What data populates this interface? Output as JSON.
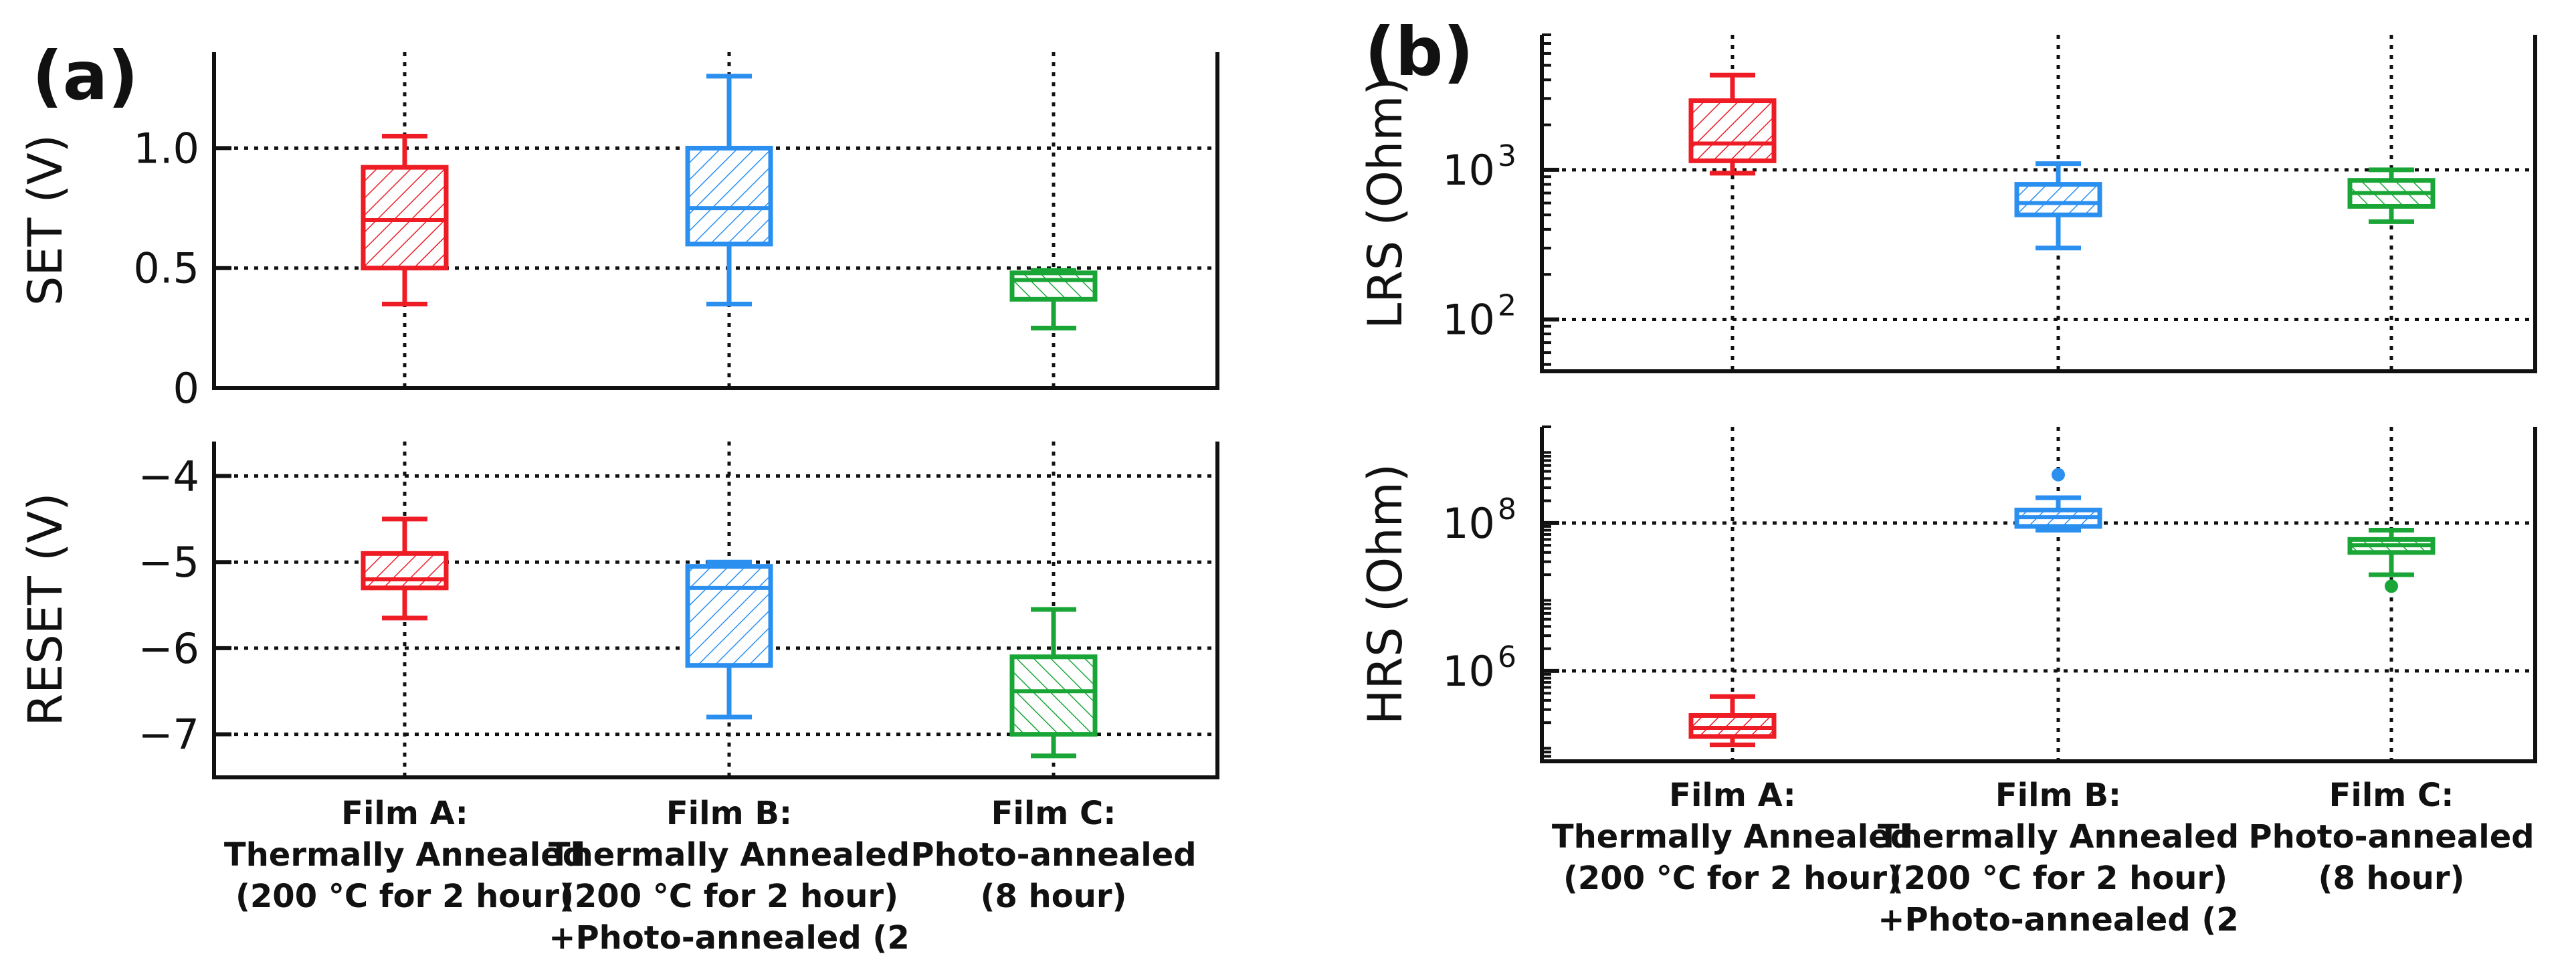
{
  "colors": {
    "film_a": "#ee1c25",
    "film_b": "#2b8ff0",
    "film_c": "#1aa637",
    "axis": "#111111",
    "grid": "#111111"
  },
  "categories": [
    [
      "Film A:",
      "Thermally Annealed",
      "(200 °C for 2 hour)"
    ],
    [
      "Film B:",
      "Thermally Annealed",
      "(200 °C for 2 hour)",
      "+Photo-annealed (2"
    ],
    [
      "Film C:",
      "Photo-annealed",
      "(8 hour)"
    ]
  ],
  "chart_data": [
    {
      "panel": "(a)",
      "position": "top",
      "type": "box",
      "ylabel": "SET (V)",
      "ylim": [
        0,
        1.4
      ],
      "yticks": [
        0,
        0.5,
        1.0
      ],
      "ytick_labels": [
        "0",
        "0.5",
        "1.0"
      ],
      "grid": true,
      "series": [
        {
          "name": "Film A",
          "min": 0.35,
          "q1": 0.5,
          "median": 0.7,
          "q3": 0.92,
          "max": 1.05
        },
        {
          "name": "Film B",
          "min": 0.35,
          "q1": 0.6,
          "median": 0.75,
          "q3": 1.0,
          "max": 1.3
        },
        {
          "name": "Film C",
          "min": 0.25,
          "q1": 0.37,
          "median": 0.45,
          "q3": 0.48,
          "max": 0.49
        }
      ]
    },
    {
      "panel": "(a)",
      "position": "bottom",
      "type": "box",
      "ylabel": "RESET (V)",
      "ylim": [
        -7.5,
        -3.6
      ],
      "yticks": [
        -4,
        -5,
        -6,
        -7
      ],
      "ytick_labels": [
        "−4",
        "−5",
        "−6",
        "−7"
      ],
      "grid": true,
      "series": [
        {
          "name": "Film A",
          "min": -5.65,
          "q1": -5.3,
          "median": -5.2,
          "q3": -4.9,
          "max": -4.5
        },
        {
          "name": "Film B",
          "min": -6.8,
          "q1": -6.2,
          "median": -5.3,
          "q3": -5.05,
          "max": -5.0
        },
        {
          "name": "Film C",
          "min": -7.25,
          "q1": -7.0,
          "median": -6.5,
          "q3": -6.1,
          "max": -5.55
        }
      ]
    },
    {
      "panel": "(b)",
      "position": "top",
      "type": "box",
      "yscale": "log",
      "ylabel": "LRS (Ohm)",
      "ylim": [
        45,
        8000
      ],
      "yticks": [
        100,
        1000
      ],
      "ytick_labels": [
        {
          "base": "10",
          "exp": "2"
        },
        {
          "base": "10",
          "exp": "3"
        }
      ],
      "grid": true,
      "series": [
        {
          "name": "Film A",
          "min": 950,
          "q1": 1150,
          "median": 1500,
          "q3": 2900,
          "max": 4300
        },
        {
          "name": "Film B",
          "min": 300,
          "q1": 500,
          "median": 600,
          "q3": 800,
          "max": 1100
        },
        {
          "name": "Film C",
          "min": 450,
          "q1": 570,
          "median": 700,
          "q3": 850,
          "max": 1000
        }
      ]
    },
    {
      "panel": "(b)",
      "position": "bottom",
      "type": "box",
      "yscale": "log",
      "ylabel": "HRS (Ohm)",
      "ylim": [
        60000,
        2000000000
      ],
      "yticks": [
        1000000,
        100000000
      ],
      "ytick_labels": [
        {
          "base": "10",
          "exp": "6"
        },
        {
          "base": "10",
          "exp": "8"
        }
      ],
      "grid": true,
      "series": [
        {
          "name": "Film A",
          "min": 100000,
          "q1": 130000,
          "median": 170000,
          "q3": 250000,
          "max": 450000
        },
        {
          "name": "Film B",
          "min": 80000000,
          "q1": 90000000,
          "median": 120000000,
          "q3": 150000000,
          "max": 220000000,
          "outliers": [
            450000000
          ]
        },
        {
          "name": "Film C",
          "min": 20000000,
          "q1": 40000000,
          "median": 50000000,
          "q3": 60000000,
          "max": 80000000,
          "outliers": [
            14000000
          ]
        }
      ]
    }
  ]
}
